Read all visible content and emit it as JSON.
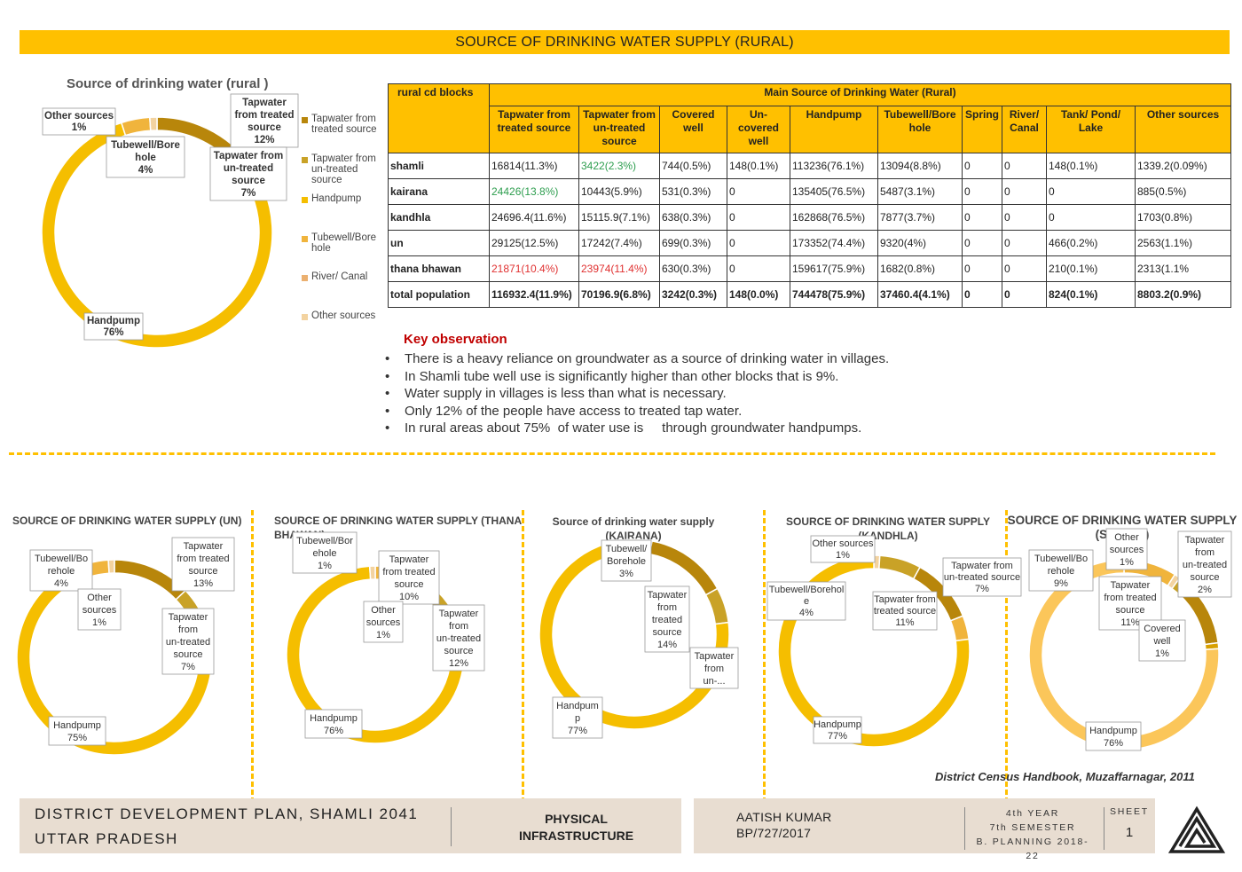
{
  "title": "SOURCE OF DRINKING WATER SUPPLY (RURAL)",
  "chart_data": [
    {
      "type": "pie",
      "title": "Source of drinking water (rural )",
      "categories": [
        "Tapwater from treated source",
        "Tapwater from un-treated source",
        "Handpump",
        "Tubewell/Bore hole",
        "River/ Canal",
        "Other sources"
      ],
      "values": [
        12,
        7,
        76,
        4,
        0,
        1
      ],
      "legend": [
        "Tapwater from treated source",
        "Tapwater from un-treated source",
        "Handpump",
        "Tubewell/Bore hole",
        "River/ Canal",
        "Other sources"
      ],
      "legend_position": "right",
      "labels": {
        "treated": [
          "Tapwater",
          "from treated",
          "source",
          "12%"
        ],
        "untreated": [
          "Tapwater from",
          "un-treated",
          "source",
          "7%"
        ],
        "handpump": [
          "Handpump",
          "76%"
        ],
        "tubewell": [
          "Tubewell/Bore",
          "hole",
          "4%"
        ],
        "other": [
          "Other sources",
          "1%"
        ]
      }
    },
    {
      "type": "pie",
      "title": "SOURCE OF DRINKING WATER SUPPLY (UN)",
      "categories": [
        "Tapwater from treated source",
        "Tapwater from un-treated source",
        "Handpump",
        "Tubewell/Borehole",
        "Other sources"
      ],
      "values": [
        13,
        7,
        75,
        4,
        1
      ],
      "labels": {
        "treated": [
          "Tapwater",
          "from treated",
          "source",
          "13%"
        ],
        "untreated": [
          "Tapwater",
          "from",
          "un-treated",
          "source",
          "7%"
        ],
        "handpump": [
          "Handpump",
          "75%"
        ],
        "tubewell": [
          "Tubewell/Bo",
          "rehole",
          "4%"
        ],
        "other": [
          "Other",
          "sources",
          "1%"
        ]
      }
    },
    {
      "type": "pie",
      "title": "SOURCE OF DRINKING WATER SUPPLY (THANA BHAWAN)",
      "title_lines": [
        "SOURCE OF DRINKING WATER SUPPLY (THANA",
        "BHAWAN)"
      ],
      "categories": [
        "Tapwater from treated source",
        "Tapwater from un-treated source",
        "Handpump",
        "Tubewell/Borehole",
        "Other sources"
      ],
      "values": [
        10,
        12,
        76,
        1,
        1
      ],
      "labels": {
        "tubewell": [
          "Tubewell/Bor",
          "ehole",
          "1%"
        ],
        "treated": [
          "Tapwater",
          "from treated",
          "source",
          "10%"
        ],
        "other": [
          "Other",
          "sources",
          "1%"
        ],
        "untreated": [
          "Tapwater",
          "from",
          "un-treated",
          "source",
          "12%"
        ],
        "handpump": [
          "Handpump",
          "76%"
        ]
      }
    },
    {
      "type": "pie",
      "title": "Source of drinking water supply (KAIRANA)",
      "title_lines": [
        "Source of drinking water supply",
        "(KAIRANA)"
      ],
      "categories": [
        "Tubewell/Borehole",
        "Tapwater from treated source",
        "Tapwater from un-treated source",
        "Handpump"
      ],
      "values": [
        3,
        14,
        6,
        77
      ],
      "labels": {
        "tubewell": [
          "Tubewell/",
          "Borehole",
          "3%"
        ],
        "treated": [
          "Tapwater",
          "from",
          "treated",
          "source",
          "14%"
        ],
        "untreated": [
          "Tapwater",
          "from",
          "un-..."
        ],
        "handpump": [
          "Handpum",
          "p",
          "77%"
        ]
      }
    },
    {
      "type": "pie",
      "title": "SOURCE OF DRINKING WATER SUPPLY (KANDHLA)",
      "title_lines": [
        "SOURCE OF DRINKING WATER SUPPLY",
        "(KANDHLA)"
      ],
      "categories": [
        "Other sources",
        "Tapwater from un-treated source",
        "Tapwater from treated source",
        "Tubewell/Borehole",
        "Handpump"
      ],
      "values": [
        1,
        7,
        11,
        4,
        77
      ],
      "labels": {
        "other": [
          "Other sources",
          "1%"
        ],
        "untreated": [
          "Tapwater from",
          "un-treated source",
          "7%"
        ],
        "tubewell": [
          "Tubewell/Borehol",
          "e",
          "4%"
        ],
        "treated": [
          "Tapwater from",
          "treated source",
          "11%"
        ],
        "handpump": [
          "Handpump",
          "77%"
        ]
      }
    },
    {
      "type": "pie",
      "title": "SOURCE OF DRINKING WATER SUPPLY (SHAMLI)",
      "title_lines": [
        "SOURCE OF DRINKING WATER SUPPLY",
        "(SHAMLI)"
      ],
      "categories": [
        "Tubewell/Borehole",
        "Other sources",
        "Tapwater from un-treated source",
        "Tapwater from treated source",
        "Covered well",
        "Handpump"
      ],
      "values": [
        9,
        1,
        2,
        11,
        1,
        76
      ],
      "labels": {
        "tubewell": [
          "Tubewell/Bo",
          "rehole",
          "9%"
        ],
        "other": [
          "Other",
          "sources",
          "1%"
        ],
        "untreated": [
          "Tapwater",
          "from",
          "un-treated",
          "source",
          "2%"
        ],
        "treated": [
          "Tapwater",
          "from treated",
          "source",
          "11%"
        ],
        "covered": [
          "Covered",
          "well",
          "1%"
        ],
        "handpump": [
          "Handpump",
          "76%"
        ]
      }
    }
  ],
  "table": {
    "corner_header": "rural  cd blocks",
    "group_header": "Main Source of Drinking Water (Rural)",
    "columns": [
      "Tapwater from treated source",
      "Tapwater from un-treated source",
      "Covered well",
      "Un- covered well",
      "Handpump",
      "Tubewell/Bore hole",
      "Spring",
      "River/ Canal",
      "Tank/ Pond/ Lake",
      "Other sources"
    ],
    "rows": [
      {
        "name": "shamli",
        "cells": [
          "16814(11.3%)",
          "3422(2.3%)",
          "744(0.5%)",
          "148(0.1%)",
          "113236(76.1%)",
          "13094(8.8%)",
          "0",
          "0",
          "148(0.1%)",
          "1339.2(0.09%)"
        ],
        "colors": [
          "",
          "#2E9E4F",
          "",
          "",
          "",
          "",
          "",
          "",
          "",
          ""
        ]
      },
      {
        "name": "kairana",
        "cells": [
          "24426(13.8%)",
          "10443(5.9%)",
          "531(0.3%)",
          "0",
          "135405(76.5%)",
          "5487(3.1%)",
          "0",
          "0",
          "0",
          "885(0.5%)"
        ],
        "colors": [
          "#2E9E4F",
          "",
          "",
          "",
          "",
          "",
          "",
          "",
          "",
          ""
        ]
      },
      {
        "name": "kandhla",
        "cells": [
          "24696.4(11.6%)",
          "15115.9(7.1%)",
          "638(0.3%)",
          "0",
          "162868(76.5%)",
          "7877(3.7%)",
          "0",
          "0",
          "0",
          "1703(0.8%)"
        ],
        "colors": [
          "",
          "",
          "",
          "",
          "",
          "",
          "",
          "",
          "",
          ""
        ]
      },
      {
        "name": "un",
        "cells": [
          "29125(12.5%)",
          "17242(7.4%)",
          "699(0.3%)",
          "0",
          "173352(74.4%)",
          "9320(4%)",
          "0",
          "0",
          "466(0.2%)",
          "2563(1.1%)"
        ],
        "colors": [
          "",
          "",
          "",
          "",
          "",
          "",
          "",
          "",
          "",
          ""
        ]
      },
      {
        "name": "thana bhawan",
        "cells": [
          "21871(10.4%)",
          "23974(11.4%)",
          "630(0.3%)",
          "0",
          "159617(75.9%)",
          "1682(0.8%)",
          "0",
          "0",
          "210(0.1%)",
          "2313(1.1%"
        ],
        "colors": [
          "#E03030",
          "#E03030",
          "",
          "",
          "",
          "",
          "",
          "",
          "",
          ""
        ]
      },
      {
        "name": "total population",
        "cells": [
          "116932.4(11.9%)",
          "70196.9(6.8%)",
          "3242(0.3%)",
          "148(0.0%)",
          "744478(75.9%)",
          "37460.4(4.1%)",
          "0",
          "0",
          "824(0.1%)",
          "8803.2(0.9%)"
        ],
        "colors": [
          "",
          "",
          "",
          "",
          "",
          "",
          "",
          "",
          "",
          ""
        ]
      }
    ]
  },
  "key_observation": {
    "title": "Key observation",
    "points": [
      "There is a heavy reliance on groundwater as a source of drinking water in villages.",
      "In Shamli tube well use is significantly higher than other blocks that is 9%.",
      "Water supply in villages is less than what is necessary.",
      "Only 12% of the people have access to treated tap water.",
      "In rural areas about 75%  of water use is     through groundwater handpumps."
    ]
  },
  "source_note": "District Census Handbook, Muzaffarnagar, 2011",
  "footer": {
    "plan_title": "DISTRICT DEVELOPMENT PLAN, SHAMLI 2041",
    "state": "UTTAR PRADESH",
    "section": [
      "PHYSICAL",
      "INFRASTRUCTURE"
    ],
    "author": "AATISH KUMAR",
    "roll": "BP/727/2017",
    "year": "4th YEAR",
    "semester": "7th SEMESTER",
    "program": "B. PLANNING 2018-22",
    "sheet_label": "SHEET",
    "sheet_no": "1"
  },
  "colors": {
    "accent": "#FFC000",
    "treated": "#B8860B",
    "untreated": "#C9A227",
    "handpump": "#F5BE00",
    "tubewell": "#F0B43C",
    "other": "#F3D3A0",
    "footer_bg": "#E8DDD1",
    "alert": "#C00000"
  }
}
